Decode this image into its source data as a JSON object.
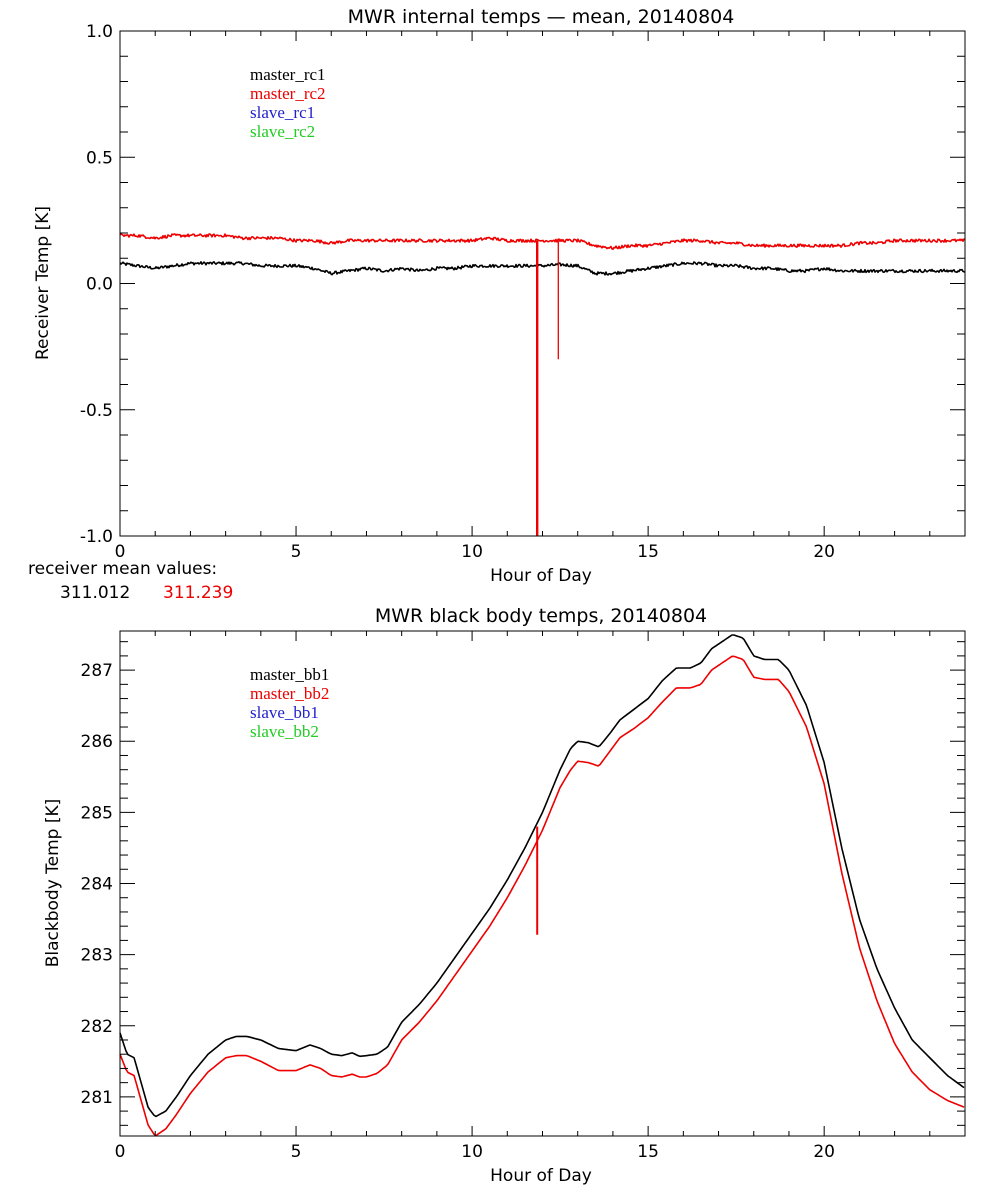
{
  "colors": {
    "black": "#000000",
    "red": "#ee0000",
    "blue": "#2222cc",
    "green": "#22cc22"
  },
  "receiver_note": {
    "label": "receiver mean values:",
    "value_1": "311.012",
    "value_2": "311.239"
  },
  "chart_data": [
    {
      "type": "line",
      "title": "MWR internal temps — mean, 20140804",
      "xlabel": "Hour of Day",
      "ylabel": "Receiver Temp [K]",
      "xlim": [
        0,
        24
      ],
      "ylim": [
        -1.0,
        1.0
      ],
      "xticks": [
        0,
        5,
        10,
        15,
        20
      ],
      "xtick_labels": [
        "0",
        "5",
        "10",
        "15",
        "20"
      ],
      "yticks": [
        -1.0,
        -0.5,
        0.0,
        0.5,
        1.0
      ],
      "ytick_labels": [
        "-1.0",
        "-0.5",
        "0.0",
        "0.5",
        "1.0"
      ],
      "legend_position": "top-left",
      "legend": [
        {
          "name": "master_rc1",
          "color": "#000000"
        },
        {
          "name": "master_rc2",
          "color": "#ee0000"
        },
        {
          "name": "slave_rc1",
          "color": "#2222cc"
        },
        {
          "name": "slave_rc2",
          "color": "#22cc22"
        }
      ],
      "series": [
        {
          "name": "master_rc1",
          "color": "#000000",
          "x": [
            0,
            0.5,
            1,
            1.5,
            2,
            2.5,
            3,
            3.5,
            4,
            4.5,
            5,
            5.5,
            6,
            6.5,
            7,
            7.5,
            8,
            8.5,
            9,
            9.5,
            10,
            10.5,
            11,
            11.5,
            12,
            12.5,
            13,
            13.5,
            14,
            14.5,
            15,
            15.5,
            16,
            16.5,
            17,
            17.5,
            18,
            18.5,
            19,
            19.5,
            20,
            20.5,
            21,
            21.5,
            22,
            22.5,
            23,
            23.5,
            24
          ],
          "values": [
            0.08,
            0.07,
            0.06,
            0.07,
            0.08,
            0.08,
            0.08,
            0.08,
            0.07,
            0.07,
            0.07,
            0.06,
            0.04,
            0.05,
            0.06,
            0.05,
            0.06,
            0.05,
            0.06,
            0.06,
            0.07,
            0.07,
            0.07,
            0.07,
            0.07,
            0.075,
            0.07,
            0.04,
            0.04,
            0.05,
            0.06,
            0.07,
            0.08,
            0.08,
            0.07,
            0.07,
            0.06,
            0.06,
            0.05,
            0.05,
            0.06,
            0.05,
            0.05,
            0.05,
            0.05,
            0.05,
            0.05,
            0.05,
            0.05
          ],
          "noise": 0.006
        },
        {
          "name": "master_rc2",
          "color": "#ee0000",
          "x": [
            0,
            0.5,
            1,
            1.5,
            2,
            2.5,
            3,
            3.5,
            4,
            4.5,
            5,
            5.5,
            6,
            6.5,
            7,
            7.5,
            8,
            8.5,
            9,
            9.5,
            10,
            10.5,
            11,
            11.5,
            12,
            12.5,
            13,
            13.5,
            14,
            14.5,
            15,
            15.5,
            16,
            16.5,
            17,
            17.5,
            18,
            18.5,
            19,
            19.5,
            20,
            20.5,
            21,
            21.5,
            22,
            22.5,
            23,
            23.5,
            24
          ],
          "values": [
            0.19,
            0.19,
            0.18,
            0.19,
            0.19,
            0.19,
            0.19,
            0.18,
            0.18,
            0.18,
            0.17,
            0.17,
            0.16,
            0.17,
            0.17,
            0.17,
            0.17,
            0.17,
            0.17,
            0.17,
            0.17,
            0.18,
            0.17,
            0.17,
            0.17,
            0.17,
            0.17,
            0.15,
            0.14,
            0.15,
            0.15,
            0.16,
            0.17,
            0.17,
            0.16,
            0.16,
            0.15,
            0.15,
            0.15,
            0.15,
            0.15,
            0.15,
            0.16,
            0.16,
            0.17,
            0.17,
            0.17,
            0.17,
            0.17
          ],
          "noise": 0.006
        }
      ],
      "spikes": [
        {
          "x": 11.85,
          "from": 0.17,
          "to": -1.0,
          "color": "#ee0000",
          "width": 2.4
        },
        {
          "x": 12.45,
          "from": 0.17,
          "to": -0.3,
          "color": "#ee0000",
          "width": 1.3
        }
      ]
    },
    {
      "type": "line",
      "title": "MWR black body temps, 20140804",
      "xlabel": "Hour of Day",
      "ylabel": "Blackbody Temp [K]",
      "xlim": [
        0,
        24
      ],
      "ylim": [
        280.45,
        287.55
      ],
      "xticks": [
        0,
        5,
        10,
        15,
        20
      ],
      "xtick_labels": [
        "0",
        "5",
        "10",
        "15",
        "20"
      ],
      "yticks": [
        281,
        282,
        283,
        284,
        285,
        286,
        287
      ],
      "ytick_labels": [
        "281",
        "282",
        "283",
        "284",
        "285",
        "286",
        "287"
      ],
      "legend_position": "top-left",
      "legend": [
        {
          "name": "master_bb1",
          "color": "#000000"
        },
        {
          "name": "master_bb2",
          "color": "#ee0000"
        },
        {
          "name": "slave_bb1",
          "color": "#2222cc"
        },
        {
          "name": "slave_bb2",
          "color": "#22cc22"
        }
      ],
      "series": [
        {
          "name": "master_bb1",
          "color": "#000000",
          "x": [
            0,
            0.2,
            0.4,
            0.6,
            0.8,
            1.0,
            1.3,
            1.6,
            2.0,
            2.5,
            3.0,
            3.3,
            3.6,
            4.0,
            4.5,
            5.0,
            5.4,
            5.7,
            6.0,
            6.3,
            6.6,
            6.8,
            7.0,
            7.3,
            7.6,
            8.0,
            8.5,
            9.0,
            9.5,
            10.0,
            10.5,
            11.0,
            11.5,
            12.0,
            12.5,
            12.8,
            13.0,
            13.3,
            13.6,
            13.9,
            14.2,
            14.6,
            15.0,
            15.4,
            15.8,
            16.2,
            16.5,
            16.8,
            17.1,
            17.4,
            17.7,
            18.0,
            18.3,
            18.7,
            19.0,
            19.5,
            20.0,
            20.5,
            21.0,
            21.5,
            22.0,
            22.5,
            23.0,
            23.5,
            24.0
          ],
          "values": [
            281.9,
            281.6,
            281.55,
            281.2,
            280.85,
            280.72,
            280.8,
            281.0,
            281.3,
            281.6,
            281.8,
            281.85,
            281.85,
            281.8,
            281.68,
            281.65,
            281.73,
            281.68,
            281.6,
            281.58,
            281.62,
            281.57,
            281.58,
            281.6,
            281.7,
            282.05,
            282.3,
            282.6,
            282.95,
            283.3,
            283.65,
            284.05,
            284.5,
            285.0,
            285.6,
            285.9,
            286.0,
            285.98,
            285.92,
            286.1,
            286.3,
            286.45,
            286.6,
            286.85,
            287.03,
            287.03,
            287.1,
            287.3,
            287.4,
            287.5,
            287.45,
            287.2,
            287.15,
            287.15,
            287.0,
            286.5,
            285.7,
            284.5,
            283.5,
            282.8,
            282.25,
            281.8,
            281.55,
            281.3,
            281.12
          ]
        },
        {
          "name": "master_bb2",
          "color": "#ee0000",
          "x": [
            0,
            0.2,
            0.4,
            0.6,
            0.8,
            1.0,
            1.3,
            1.6,
            2.0,
            2.5,
            3.0,
            3.3,
            3.6,
            4.0,
            4.5,
            5.0,
            5.4,
            5.7,
            6.0,
            6.3,
            6.6,
            6.8,
            7.0,
            7.3,
            7.6,
            8.0,
            8.5,
            9.0,
            9.5,
            10.0,
            10.5,
            11.0,
            11.5,
            12.0,
            12.5,
            12.8,
            13.0,
            13.3,
            13.6,
            13.9,
            14.2,
            14.6,
            15.0,
            15.4,
            15.8,
            16.2,
            16.5,
            16.8,
            17.1,
            17.4,
            17.7,
            18.0,
            18.3,
            18.7,
            19.0,
            19.5,
            20.0,
            20.5,
            21.0,
            21.5,
            22.0,
            22.5,
            23.0,
            23.5,
            24.0
          ],
          "values": [
            281.6,
            281.35,
            281.3,
            280.95,
            280.6,
            280.45,
            280.55,
            280.75,
            281.05,
            281.35,
            281.55,
            281.58,
            281.58,
            281.5,
            281.37,
            281.37,
            281.45,
            281.4,
            281.3,
            281.28,
            281.32,
            281.28,
            281.28,
            281.33,
            281.45,
            281.8,
            282.05,
            282.35,
            282.7,
            283.05,
            283.4,
            283.8,
            284.25,
            284.75,
            285.35,
            285.6,
            285.72,
            285.7,
            285.65,
            285.85,
            286.05,
            286.18,
            286.33,
            286.55,
            286.75,
            286.75,
            286.8,
            287.0,
            287.1,
            287.2,
            287.15,
            286.9,
            286.87,
            286.87,
            286.7,
            286.2,
            285.4,
            284.15,
            283.1,
            282.35,
            281.75,
            281.35,
            281.1,
            280.95,
            280.85
          ]
        }
      ],
      "spikes": [
        {
          "x": 11.85,
          "from": 284.8,
          "to": 283.28,
          "color": "#ee0000",
          "width": 2.0
        }
      ]
    }
  ]
}
